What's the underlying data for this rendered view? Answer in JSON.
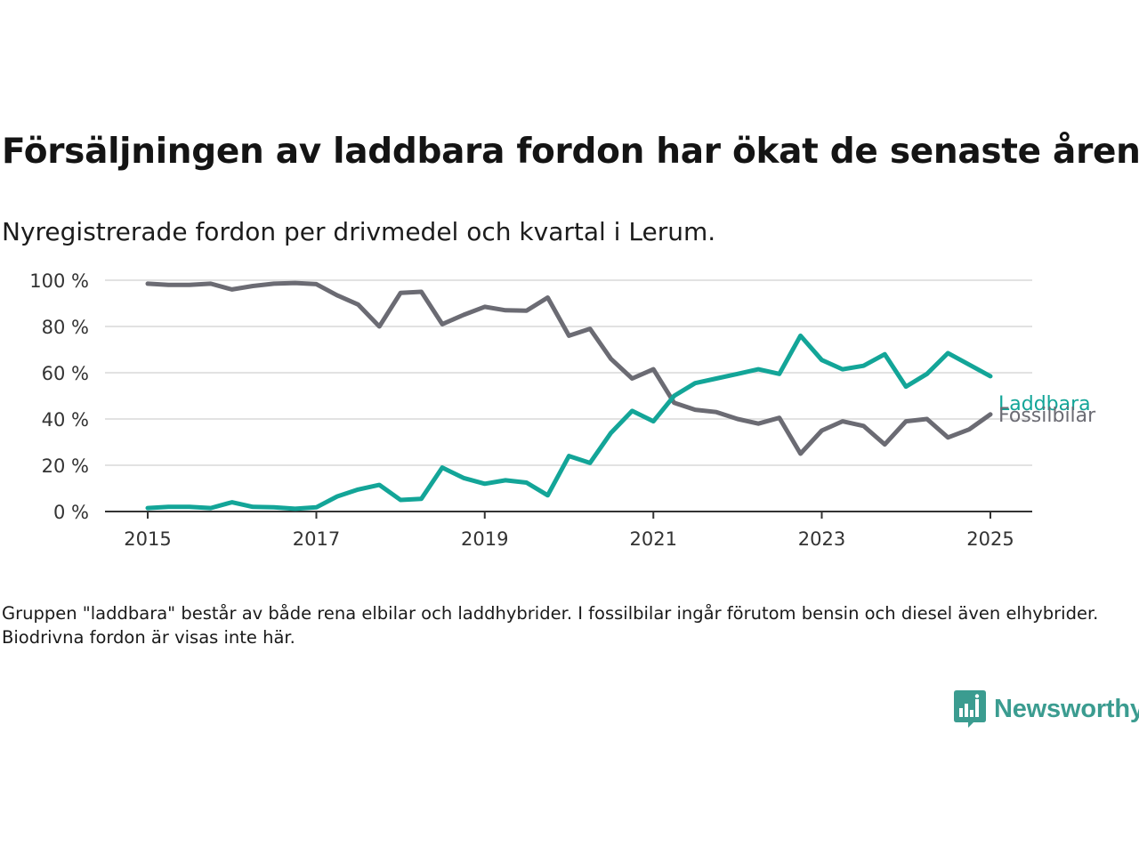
{
  "header": {
    "title": "Försäljningen av laddbara fordon har ökat de senaste åren",
    "subtitle": "Nyregistrerade fordon per drivmedel och kvartal i Lerum."
  },
  "footer": {
    "note": "Gruppen \"laddbara\" består av både rena elbilar och laddhybrider. I fossilbilar ingår förutom bensin och diesel även elhybrider. Biodrivna fordon är visas inte här.",
    "brand": "Newsworthy",
    "brand_color": "#3b9c90"
  },
  "chart_data": {
    "type": "line",
    "title": "Försäljningen av laddbara fordon har ökat de senaste åren",
    "subtitle": "Nyregistrerade fordon per drivmedel och kvartal i Lerum.",
    "x": [
      "2015-01-01",
      "2015-04-01",
      "2015-07-01",
      "2015-10-01",
      "2016-01-01",
      "2016-04-01",
      "2016-07-01",
      "2016-10-01",
      "2017-01-01",
      "2017-04-01",
      "2017-07-01",
      "2017-10-01",
      "2018-01-01",
      "2018-04-01",
      "2018-07-01",
      "2018-10-01",
      "2019-01-01",
      "2019-04-01",
      "2019-07-01",
      "2019-10-01",
      "2020-01-01",
      "2020-04-01",
      "2020-07-01",
      "2020-10-01",
      "2021-01-01",
      "2021-04-01",
      "2021-07-01",
      "2021-10-01",
      "2022-01-01",
      "2022-04-01",
      "2022-07-01",
      "2022-10-01",
      "2023-01-01",
      "2023-04-01",
      "2023-07-01",
      "2023-10-01",
      "2024-01-01",
      "2024-04-01",
      "2024-07-01",
      "2024-10-01",
      "2025-01-01"
    ],
    "series": [
      {
        "name": "Laddbara",
        "color": "#13a598",
        "values": [
          1.5,
          2,
          2,
          1.5,
          4,
          2,
          1.8,
          1.2,
          1.8,
          6.5,
          9.5,
          11.5,
          5,
          5.5,
          19,
          14.5,
          12,
          13.5,
          12.5,
          7,
          24,
          21,
          34,
          43.5,
          39,
          50,
          55.5,
          57.5,
          59.5,
          61.5,
          59.5,
          76,
          65.5,
          61.5,
          63,
          68,
          54,
          59.5,
          68.5,
          63.5,
          58.5
        ]
      },
      {
        "name": "Fossilbilar",
        "color": "#6b6b73",
        "values": [
          98.5,
          98,
          98,
          98.5,
          96,
          97.5,
          98.5,
          98.8,
          98.3,
          93.5,
          89.5,
          80,
          94.5,
          95,
          81,
          85,
          88.5,
          87,
          86.8,
          92.5,
          76,
          79,
          66,
          57.5,
          61.5,
          47,
          44,
          43,
          40,
          38,
          40.5,
          25,
          35,
          39,
          37,
          29,
          39,
          40,
          32,
          35.5,
          42
        ]
      }
    ],
    "xticks": [
      "2015",
      "2017",
      "2019",
      "2021",
      "2023",
      "2025"
    ],
    "yticks": [
      "0 %",
      "20 %",
      "40 %",
      "60 %",
      "80 %",
      "100 %"
    ],
    "ylim": [
      0,
      100
    ],
    "xlabel": "",
    "ylabel": "",
    "grid": true,
    "legend": "end-of-line labels"
  }
}
